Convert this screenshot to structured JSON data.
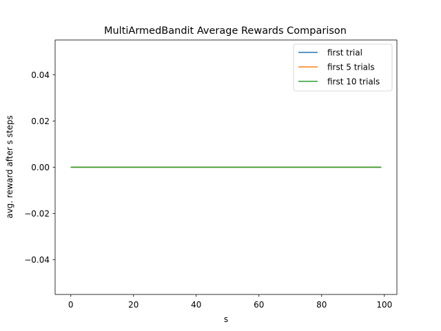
{
  "chart_data": {
    "type": "line",
    "title": "MultiArmedBandit Average Rewards Comparison",
    "xlabel": "s",
    "ylabel": "avg. reward after s steps",
    "xlim": [
      -5,
      104
    ],
    "ylim": [
      -0.055,
      0.055
    ],
    "xticks": [
      0,
      20,
      40,
      60,
      80,
      100
    ],
    "yticks": [
      -0.04,
      -0.02,
      0.0,
      0.02,
      0.04
    ],
    "ytick_labels": [
      "−0.04",
      "−0.02",
      "0.00",
      "0.02",
      "0.04"
    ],
    "xtick_labels": [
      "0",
      "20",
      "40",
      "60",
      "80",
      "100"
    ],
    "grid": false,
    "legend_position": "top-right",
    "series": [
      {
        "name": "first trial",
        "color": "#1f77b4",
        "x": [
          0,
          99
        ],
        "y": [
          0,
          0
        ]
      },
      {
        "name": "first 5 trials",
        "color": "#ff7f0e",
        "x": [
          0,
          99
        ],
        "y": [
          0,
          0
        ]
      },
      {
        "name": "first 10 trials",
        "color": "#2ca02c",
        "x": [
          0,
          99
        ],
        "y": [
          0,
          0
        ]
      }
    ]
  }
}
